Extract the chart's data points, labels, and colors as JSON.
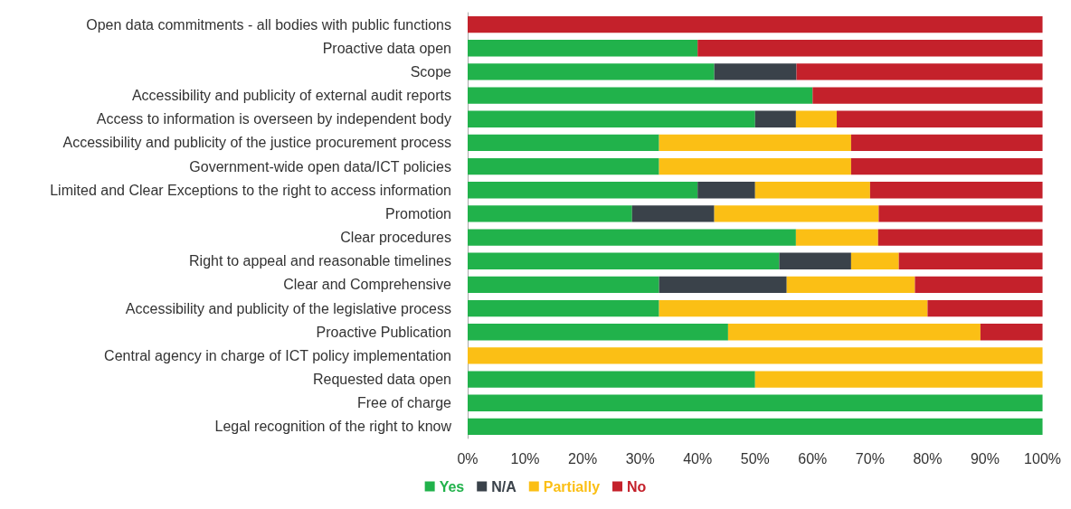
{
  "chart_data": {
    "type": "bar",
    "orientation": "horizontal",
    "stacked": true,
    "categories": [
      "Open data commitments - all bodies with public functions",
      "Proactive data open",
      "Scope",
      "Accessibility and publicity of external audit reports",
      "Access to information is overseen by independent body",
      "Accessibility and publicity of the justice procurement process",
      "Government-wide open data/ICT policies",
      "Limited and Clear Exceptions to the right to access information",
      "Promotion",
      "Clear procedures",
      "Right to appeal and reasonable timelines",
      "Clear and Comprehensive",
      "Accessibility and publicity of the legislative process",
      "Proactive Publication",
      "Central agency in charge of ICT policy implementation",
      "Requested data open",
      "Free of charge",
      "Legal recognition of the right to know"
    ],
    "series": [
      {
        "name": "Yes",
        "color": "#21b24b",
        "values": [
          0,
          40,
          42.9,
          60,
          50,
          33.3,
          33.3,
          40,
          28.6,
          57.1,
          54.2,
          33.3,
          33.3,
          45.3,
          0,
          50,
          100,
          100
        ]
      },
      {
        "name": "N/A",
        "color": "#3a424a",
        "values": [
          0,
          0,
          14.3,
          0,
          7.1,
          0,
          0,
          10,
          14.3,
          0,
          12.5,
          22.2,
          0,
          0,
          0,
          0,
          0,
          0
        ]
      },
      {
        "name": "Partially",
        "color": "#fbbf15",
        "values": [
          0,
          0,
          0,
          0,
          7.1,
          33.4,
          33.4,
          20,
          28.6,
          14.3,
          8.3,
          22.3,
          46.7,
          43.9,
          100,
          50,
          0,
          0
        ]
      },
      {
        "name": "No",
        "color": "#c4212b",
        "values": [
          100,
          60,
          42.8,
          40,
          35.8,
          33.3,
          33.3,
          30,
          28.5,
          28.6,
          25,
          22.2,
          20,
          10.8,
          0,
          0,
          0,
          0
        ]
      }
    ],
    "xlim": [
      0,
      100
    ],
    "xticks": [
      {
        "value": 0,
        "label": "0%"
      },
      {
        "value": 10,
        "label": "10%"
      },
      {
        "value": 20,
        "label": "20%"
      },
      {
        "value": 30,
        "label": "30%"
      },
      {
        "value": 40,
        "label": "40%"
      },
      {
        "value": 50,
        "label": "50%"
      },
      {
        "value": 60,
        "label": "60%"
      },
      {
        "value": 70,
        "label": "70%"
      },
      {
        "value": 80,
        "label": "80%"
      },
      {
        "value": 90,
        "label": "90%"
      },
      {
        "value": 100,
        "label": "100%"
      }
    ],
    "grid": false,
    "legend": "bottom"
  }
}
